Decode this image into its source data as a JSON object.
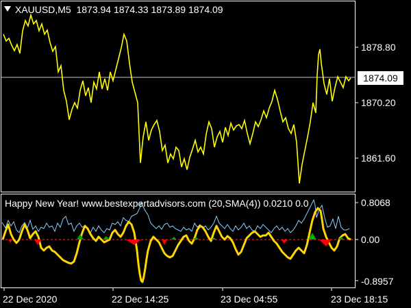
{
  "chart_title": {
    "symbol": "XAUUSD,M5",
    "ohlc": "1873.94 1874.33 1873.89 1874.09"
  },
  "price_axis": {
    "labels": [
      "1878.80",
      "1870.20",
      "1861.60"
    ],
    "current_price": "1874.09"
  },
  "indicator": {
    "label": "Happy New Year! www.bestexpertadvisors.com (20,SMA(4)) 0.0210 0.0",
    "axis_labels": [
      "0.8068",
      "0.00",
      "-0.8957"
    ]
  },
  "time_axis": {
    "labels": [
      "22 Dec 2020",
      "22 Dec 14:25",
      "23 Dec 04:55",
      "23 Dec 18:15"
    ]
  },
  "colors": {
    "price_line": "#ffff00",
    "oscillator_line": "#ffd700",
    "signal_line": "#8ad0ff",
    "zero_line": "#ff3333",
    "bullish_marker": "#00aa00",
    "bearish_marker": "#ff0000",
    "frame": "#ffffff",
    "background": "#000000"
  },
  "icons": {
    "menu": "triangle-down-icon"
  }
}
